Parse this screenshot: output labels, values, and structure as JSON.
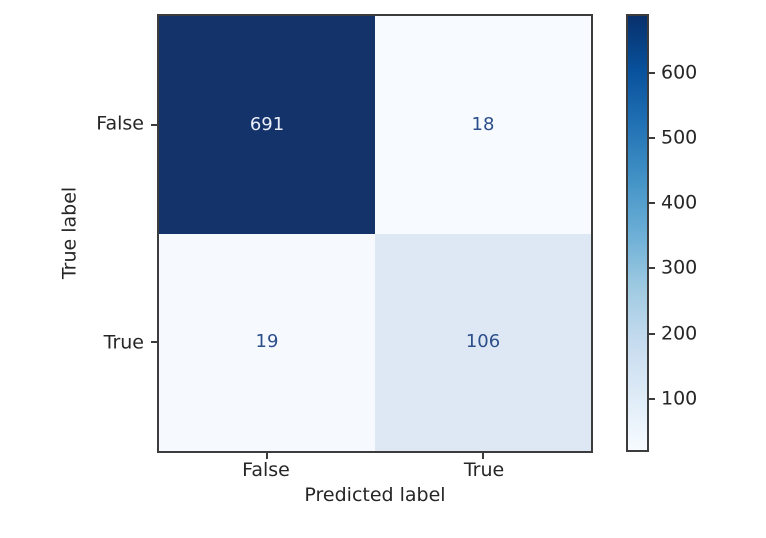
{
  "figure": {
    "background": "#ffffff",
    "axis_color": "#3c3c3c",
    "label_color": "#262626"
  },
  "chart_data": {
    "type": "heatmap",
    "subtype": "confusion-matrix",
    "title": "",
    "xlabel": "Predicted label",
    "ylabel": "True label",
    "x_tick_labels": [
      "False",
      "True"
    ],
    "y_tick_labels": [
      "False",
      "True"
    ],
    "matrix": [
      [
        691,
        18
      ],
      [
        19,
        106
      ]
    ],
    "vmin": 18,
    "vmax": 691,
    "colormap": "Blues",
    "grid": false,
    "cell_colors": [
      [
        "#14336b",
        "#f7faff"
      ],
      [
        "#f6f9fe",
        "#dde8f4"
      ]
    ],
    "cell_text_colors": [
      [
        "#e9eff8",
        "#2c4e8a"
      ],
      [
        "#2c4e8a",
        "#2c4e8a"
      ]
    ],
    "colorbar": {
      "position": "right",
      "ticks": [
        100,
        200,
        300,
        400,
        500,
        600
      ],
      "gradient_stops": [
        "#f7fbff",
        "#deebf7",
        "#c6dbef",
        "#9ecae1",
        "#6baed6",
        "#4292c6",
        "#2171b5",
        "#08519c",
        "#08306b"
      ]
    }
  }
}
